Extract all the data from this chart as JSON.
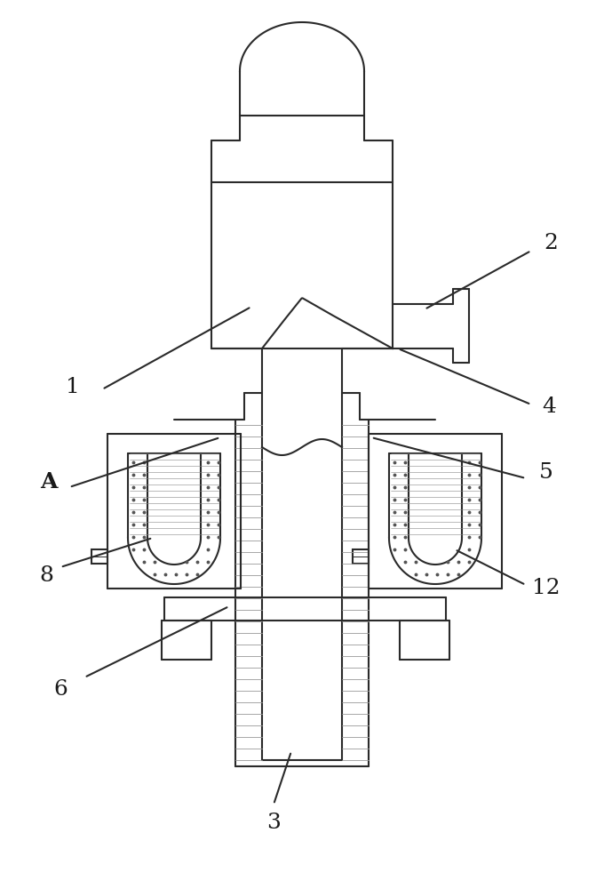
{
  "line_color": "#2a2a2a",
  "bg_color": "#ffffff",
  "line_width": 1.5,
  "label_fontsize": 18
}
